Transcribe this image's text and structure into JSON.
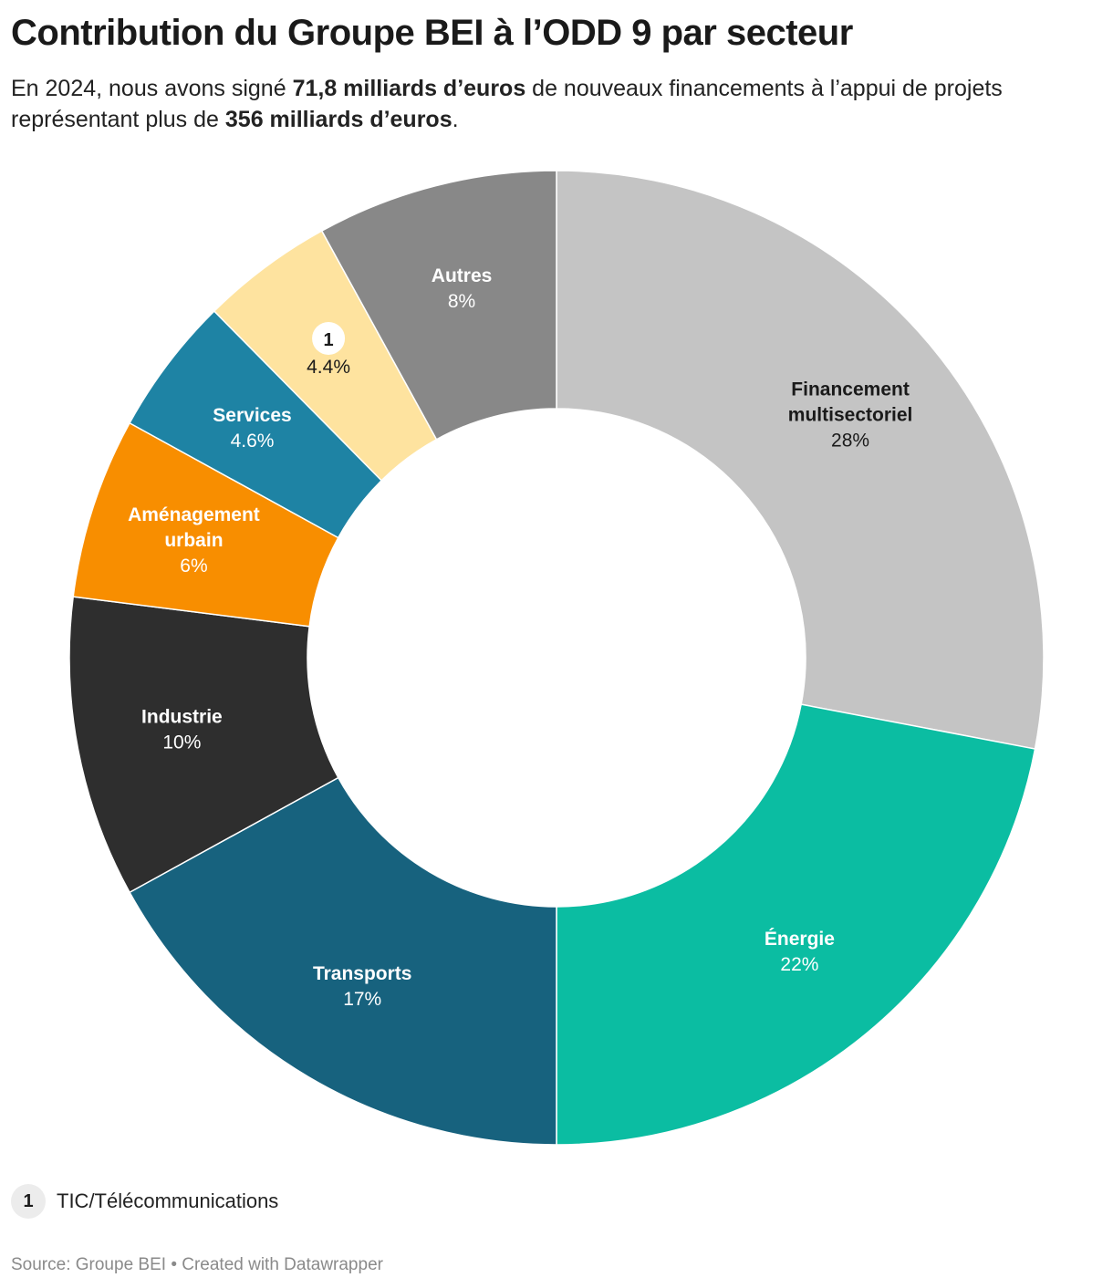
{
  "header": {
    "title": "Contribution du Groupe BEI à l’ODD 9 par secteur",
    "subtitle_part1": "En 2024, nous avons signé ",
    "subtitle_bold1": "71,8 milliards d’euros",
    "subtitle_part2": " de nouveaux financements à l’appui de projets représentant plus de ",
    "subtitle_bold2": "356 milliards d’euros",
    "subtitle_part3": "."
  },
  "chart_data": {
    "type": "pie",
    "donut": true,
    "slices": [
      {
        "label": "Financement multisectoriel",
        "value": 28,
        "value_label": "28%",
        "color": "#c4c4c4",
        "text_color": "#1a1a1a"
      },
      {
        "label": "Énergie",
        "value": 22,
        "value_label": "22%",
        "color": "#0bbda2",
        "text_color": "#ffffff"
      },
      {
        "label": "Transports",
        "value": 17,
        "value_label": "17%",
        "color": "#17627e",
        "text_color": "#ffffff"
      },
      {
        "label": "Industrie",
        "value": 10,
        "value_label": "10%",
        "color": "#2e2e2e",
        "text_color": "#ffffff"
      },
      {
        "label": "Aménagement urbain",
        "value": 6,
        "value_label": "6%",
        "color": "#f88e00",
        "text_color": "#ffffff"
      },
      {
        "label": "Services",
        "value": 4.6,
        "value_label": "4.6%",
        "color": "#1e83a4",
        "text_color": "#ffffff"
      },
      {
        "label": "1",
        "value": 4.4,
        "value_label": "4.4%",
        "color": "#fee39f",
        "text_color": "#1a1a1a",
        "badge": true
      },
      {
        "label": "Autres",
        "value": 8,
        "value_label": "8%",
        "color": "#888888",
        "text_color": "#ffffff"
      }
    ]
  },
  "legend": {
    "badge": "1",
    "text": "TIC/Télécommunications"
  },
  "source": "Source: Groupe BEI • Created with Datawrapper"
}
